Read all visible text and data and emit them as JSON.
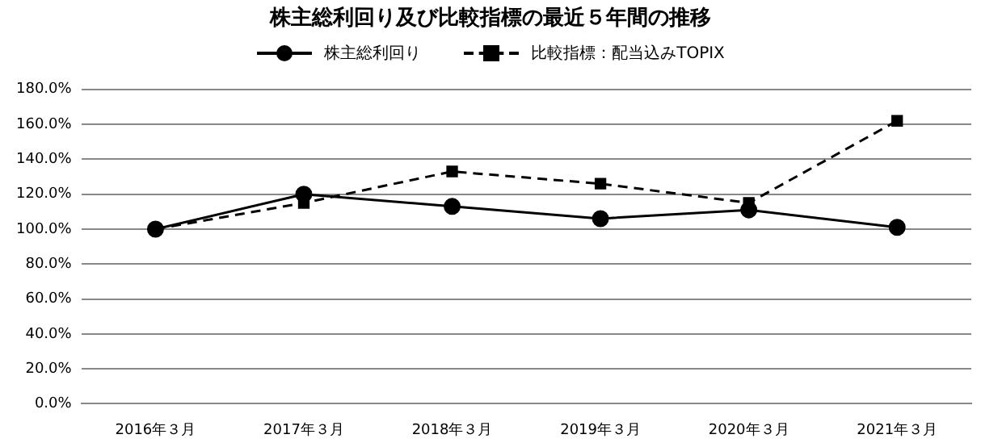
{
  "chart_data": {
    "type": "line",
    "title": "株主総利回り及び比較指標の最近５年間の推移",
    "categories": [
      "2016年３月",
      "2017年３月",
      "2018年３月",
      "2019年３月",
      "2020年３月",
      "2021年３月"
    ],
    "series": [
      {
        "name": "株主総利回り",
        "color": "#000000",
        "marker": "circle",
        "line_style": "solid",
        "values": [
          100,
          120,
          113,
          106,
          111,
          101
        ]
      },
      {
        "name": "比較指標：配当込みTOPIX",
        "color": "#000000",
        "marker": "square",
        "line_style": "dashed",
        "values": [
          100,
          115,
          133,
          126,
          115,
          162
        ]
      }
    ],
    "ylim": [
      0,
      180
    ],
    "yticks": [
      {
        "value": 0,
        "label": "0.0%"
      },
      {
        "value": 20,
        "label": "20.0%"
      },
      {
        "value": 40,
        "label": "40.0%"
      },
      {
        "value": 60,
        "label": "60.0%"
      },
      {
        "value": 80,
        "label": "80.0%"
      },
      {
        "value": 100,
        "label": "100.0%"
      },
      {
        "value": 120,
        "label": "120.0%"
      },
      {
        "value": 140,
        "label": "140.0%"
      },
      {
        "value": 160,
        "label": "160.0%"
      },
      {
        "value": 180,
        "label": "180.0%"
      }
    ],
    "grid": "y",
    "legend": "top"
  }
}
